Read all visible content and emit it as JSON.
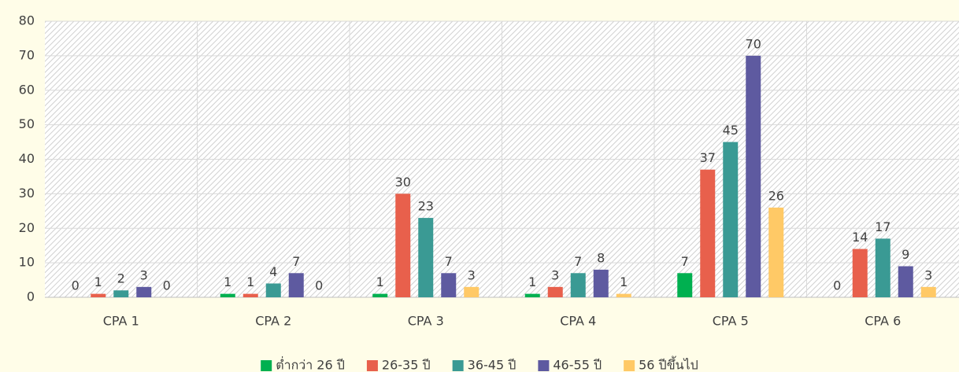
{
  "chart_data": {
    "type": "bar",
    "categories": [
      "CPA 1",
      "CPA 2",
      "CPA 3",
      "CPA 4",
      "CPA 5",
      "CPA 6"
    ],
    "series": [
      {
        "name": "ต่ำกว่า 26 ปี",
        "color": "#00b050",
        "values": [
          0,
          1,
          1,
          1,
          7,
          0
        ]
      },
      {
        "name": "26-35 ปี",
        "color": "#e8604c",
        "values": [
          1,
          1,
          30,
          3,
          37,
          14
        ]
      },
      {
        "name": "36-45 ปี",
        "color": "#3a9a94",
        "values": [
          2,
          4,
          23,
          7,
          45,
          17
        ]
      },
      {
        "name": "46-55 ปี",
        "color": "#5e5aa0",
        "values": [
          3,
          7,
          7,
          8,
          70,
          9
        ]
      },
      {
        "name": "56 ปีขึ้นไป",
        "color": "#ffc966",
        "values": [
          0,
          0,
          3,
          1,
          26,
          3
        ]
      }
    ],
    "ylim": [
      0,
      80
    ],
    "yticks": [
      0,
      10,
      20,
      30,
      40,
      50,
      60,
      70,
      80
    ],
    "grid": true,
    "legend": "bottom"
  }
}
